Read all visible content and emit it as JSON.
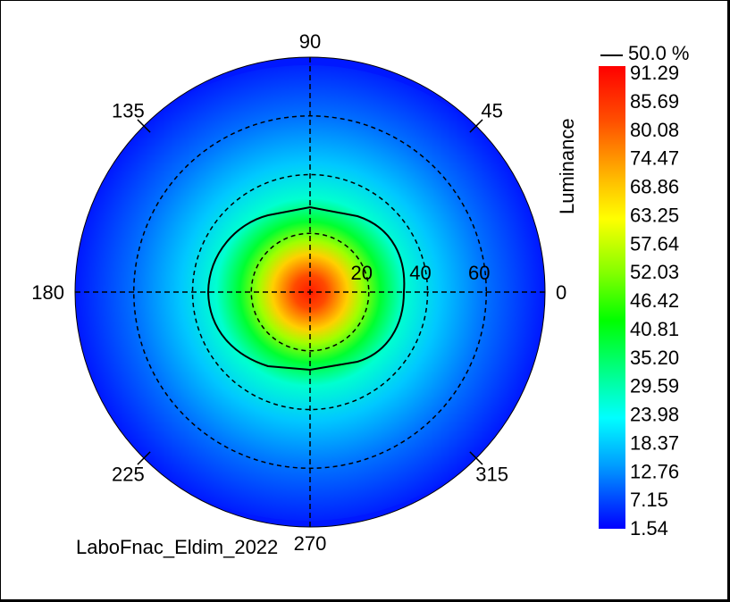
{
  "chart_data": {
    "type": "heatmap",
    "subtype": "polar-luminance",
    "caption": "LaboFnac_Eldim_2022",
    "angle_ticks": [
      "0",
      "45",
      "90",
      "135",
      "180",
      "225",
      "270",
      "315"
    ],
    "radial_ticks": [
      "20",
      "40",
      "60"
    ],
    "rmax": 80,
    "colorbar": {
      "label": "Luminance",
      "contour_legend": "50.0 %",
      "ticks": [
        "91.29",
        "85.69",
        "80.08",
        "74.47",
        "68.86",
        "63.25",
        "57.64",
        "52.03",
        "46.42",
        "40.81",
        "35.20",
        "29.59",
        "23.98",
        "18.37",
        "12.76",
        "7.15",
        "1.54"
      ],
      "min": 1.54,
      "max": 91.29
    },
    "peak": {
      "value": 91.29,
      "theta_deg": 0,
      "r_deg": 0
    },
    "contour_50pct_radius_deg": {
      "0": 32,
      "90": 27,
      "180": 37,
      "270": 28
    },
    "colors": {
      "low": "#0000ff",
      "mid_low": "#00ffff",
      "mid": "#00ff00",
      "mid_high": "#ffff00",
      "high": "#ff0000"
    },
    "grid": true
  }
}
